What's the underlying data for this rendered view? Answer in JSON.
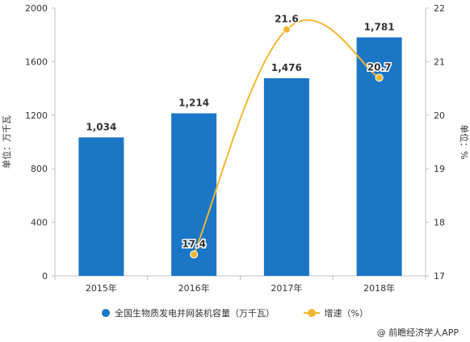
{
  "chart_data": {
    "type": "bar",
    "categories": [
      "2015年",
      "2016年",
      "2017年",
      "2018年"
    ],
    "series": [
      {
        "name": "全国生物质发电并网装机容量（万千瓦）",
        "type": "bar",
        "axis": "left",
        "values": [
          1034,
          1214,
          1476,
          1781
        ],
        "labels": [
          "1,034",
          "1,214",
          "1,476",
          "1,781"
        ],
        "color": "#1b76c6"
      },
      {
        "name": "增速（%）",
        "type": "line",
        "axis": "right",
        "values": [
          null,
          17.4,
          21.6,
          20.7
        ],
        "labels": [
          "",
          "17.4",
          "21.6",
          "20.7"
        ],
        "color": "#f0b731"
      }
    ],
    "ylabel": "单位：万千瓦",
    "y2label": "单位：%",
    "ylim": [
      0,
      2000
    ],
    "y2lim": [
      17,
      22
    ],
    "yticks": [
      "0",
      "400",
      "800",
      "1200",
      "1600",
      "2000"
    ],
    "y2ticks": [
      "17",
      "18",
      "19",
      "20",
      "21",
      "22"
    ],
    "grid": false,
    "legend_position": "bottom"
  },
  "source": "@ 前瞻经济学人APP"
}
